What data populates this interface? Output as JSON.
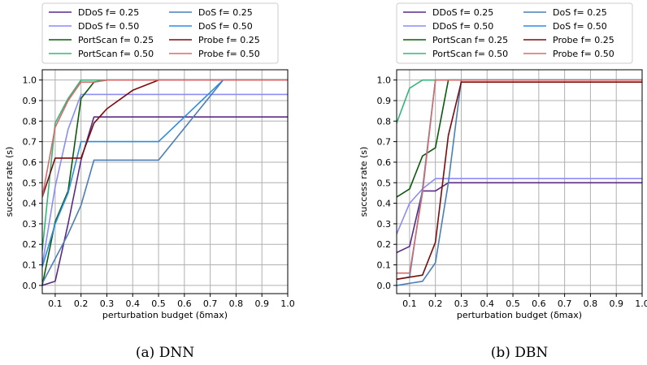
{
  "chart_data": [
    {
      "type": "line",
      "caption": "(a) DNN",
      "xlabel": "perturbation budget (δmax)",
      "ylabel": "success rate (s)",
      "xlim": [
        0.05,
        1.0
      ],
      "ylim": [
        -0.04,
        1.05
      ],
      "xticks": [
        "0.1",
        "0.2",
        "0.3",
        "0.4",
        "0.5",
        "0.6",
        "0.7",
        "0.8",
        "0.9",
        "1.0"
      ],
      "yticks": [
        "0.0",
        "0.1",
        "0.2",
        "0.3",
        "0.4",
        "0.5",
        "0.6",
        "0.7",
        "0.8",
        "0.9",
        "1.0"
      ],
      "grid": true,
      "legend_position": "top",
      "x": [
        0.05,
        0.1,
        0.15,
        0.2,
        0.25,
        0.3,
        0.4,
        0.5,
        0.75,
        1.0
      ],
      "series": [
        {
          "name": "DDoS f= 0.25",
          "color": "#5b2a86",
          "values": [
            0.0,
            0.02,
            0.3,
            0.61,
            0.82,
            0.82,
            0.82,
            0.82,
            0.82,
            0.82
          ]
        },
        {
          "name": "DDoS f= 0.50",
          "color": "#8c8cf5",
          "values": [
            0.1,
            0.48,
            0.76,
            0.93,
            0.93,
            0.93,
            0.93,
            0.93,
            0.93,
            0.93
          ]
        },
        {
          "name": "PortScan f= 0.25",
          "color": "#0b5a0b",
          "values": [
            0.0,
            0.31,
            0.46,
            0.91,
            0.99,
            1.0,
            1.0,
            1.0,
            1.0,
            1.0
          ]
        },
        {
          "name": "PortScan f= 0.50",
          "color": "#35b57a",
          "values": [
            0.17,
            0.79,
            0.91,
            1.0,
            1.0,
            1.0,
            1.0,
            1.0,
            1.0,
            1.0
          ]
        },
        {
          "name": "DoS f= 0.25",
          "color": "#4a7fb5",
          "values": [
            0.01,
            0.13,
            0.25,
            0.39,
            0.61,
            0.61,
            0.61,
            0.61,
            1.0,
            1.0
          ]
        },
        {
          "name": "DoS f= 0.50",
          "color": "#2a8de0",
          "values": [
            0.09,
            0.3,
            0.45,
            0.7,
            0.7,
            0.7,
            0.7,
            0.7,
            1.0,
            1.0
          ]
        },
        {
          "name": "Probe f= 0.25",
          "color": "#7a0c0c",
          "values": [
            0.43,
            0.62,
            0.62,
            0.62,
            0.79,
            0.86,
            0.95,
            1.0,
            1.0,
            1.0
          ]
        },
        {
          "name": "Probe f= 0.50",
          "color": "#d96a6a",
          "values": [
            0.43,
            0.77,
            0.9,
            0.99,
            0.99,
            1.0,
            1.0,
            1.0,
            1.0,
            1.0
          ]
        }
      ]
    },
    {
      "type": "line",
      "caption": "(b) DBN",
      "xlabel": "perturbation budget (δmax)",
      "ylabel": "success rate (s)",
      "xlim": [
        0.05,
        1.0
      ],
      "ylim": [
        -0.04,
        1.05
      ],
      "xticks": [
        "0.1",
        "0.2",
        "0.3",
        "0.4",
        "0.5",
        "0.6",
        "0.7",
        "0.8",
        "0.9",
        "1.0"
      ],
      "yticks": [
        "0.0",
        "0.1",
        "0.2",
        "0.3",
        "0.4",
        "0.5",
        "0.6",
        "0.7",
        "0.8",
        "0.9",
        "1.0"
      ],
      "grid": true,
      "legend_position": "top",
      "x": [
        0.05,
        0.1,
        0.15,
        0.2,
        0.25,
        0.3,
        0.4,
        0.5,
        0.75,
        1.0
      ],
      "series": [
        {
          "name": "DDoS f= 0.25",
          "color": "#5b2a86",
          "values": [
            0.16,
            0.19,
            0.46,
            0.46,
            0.5,
            0.5,
            0.5,
            0.5,
            0.5,
            0.5
          ]
        },
        {
          "name": "DDoS f= 0.50",
          "color": "#8c8cf5",
          "values": [
            0.25,
            0.4,
            0.47,
            0.52,
            0.52,
            0.52,
            0.52,
            0.52,
            0.52,
            0.52
          ]
        },
        {
          "name": "PortScan f= 0.25",
          "color": "#0b5a0b",
          "values": [
            0.43,
            0.47,
            0.63,
            0.67,
            1.0,
            1.0,
            1.0,
            1.0,
            1.0,
            1.0
          ]
        },
        {
          "name": "PortScan f= 0.50",
          "color": "#35b57a",
          "values": [
            0.79,
            0.96,
            1.0,
            1.0,
            1.0,
            1.0,
            1.0,
            1.0,
            1.0,
            1.0
          ]
        },
        {
          "name": "DoS f= 0.25",
          "color": "#4a7fb5",
          "values": [
            0.0,
            0.01,
            0.02,
            0.11,
            0.5,
            1.0,
            1.0,
            1.0,
            1.0,
            1.0
          ]
        },
        {
          "name": "DoS f= 0.50",
          "color": "#2a8de0",
          "values": [
            0.03,
            0.04,
            0.47,
            1.0,
            1.0,
            1.0,
            1.0,
            1.0,
            1.0,
            1.0
          ]
        },
        {
          "name": "Probe f= 0.25",
          "color": "#7a0c0c",
          "values": [
            0.03,
            0.04,
            0.05,
            0.21,
            0.73,
            0.99,
            0.99,
            0.99,
            0.99,
            0.99
          ]
        },
        {
          "name": "Probe f= 0.50",
          "color": "#d96a6a",
          "values": [
            0.06,
            0.06,
            0.45,
            1.0,
            1.0,
            1.0,
            1.0,
            1.0,
            1.0,
            1.0
          ]
        }
      ]
    }
  ]
}
